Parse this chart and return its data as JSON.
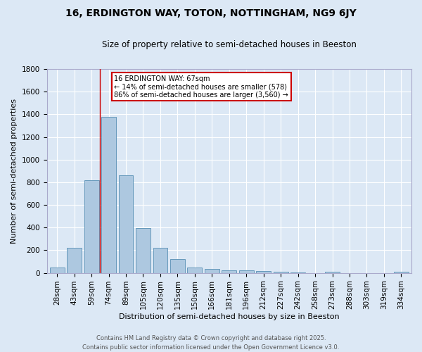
{
  "title": "16, ERDINGTON WAY, TOTON, NOTTINGHAM, NG9 6JY",
  "subtitle": "Size of property relative to semi-detached houses in Beeston",
  "xlabel": "Distribution of semi-detached houses by size in Beeston",
  "ylabel": "Number of semi-detached properties",
  "footer_line1": "Contains HM Land Registry data © Crown copyright and database right 2025.",
  "footer_line2": "Contains public sector information licensed under the Open Government Licence v3.0.",
  "categories": [
    "28sqm",
    "43sqm",
    "59sqm",
    "74sqm",
    "89sqm",
    "105sqm",
    "120sqm",
    "135sqm",
    "150sqm",
    "166sqm",
    "181sqm",
    "196sqm",
    "212sqm",
    "227sqm",
    "242sqm",
    "258sqm",
    "273sqm",
    "288sqm",
    "303sqm",
    "319sqm",
    "334sqm"
  ],
  "values": [
    50,
    220,
    820,
    1380,
    860,
    395,
    220,
    120,
    50,
    35,
    25,
    20,
    15,
    10,
    5,
    0,
    12,
    0,
    0,
    0,
    12
  ],
  "bar_color": "#adc8e0",
  "bar_edge_color": "#6699bb",
  "bg_color": "#dce8f5",
  "grid_color": "#ffffff",
  "annotation_text": "16 ERDINGTON WAY: 67sqm\n← 14% of semi-detached houses are smaller (578)\n86% of semi-detached houses are larger (3,560) →",
  "annotation_box_color": "#ffffff",
  "annotation_box_edge": "#cc0000",
  "red_line_x": 2.5,
  "ylim": [
    0,
    1800
  ],
  "yticks": [
    0,
    200,
    400,
    600,
    800,
    1000,
    1200,
    1400,
    1600,
    1800
  ],
  "title_fontsize": 10,
  "subtitle_fontsize": 8.5,
  "axis_label_fontsize": 8,
  "tick_fontsize": 7.5,
  "annotation_fontsize": 7,
  "footer_fontsize": 6
}
